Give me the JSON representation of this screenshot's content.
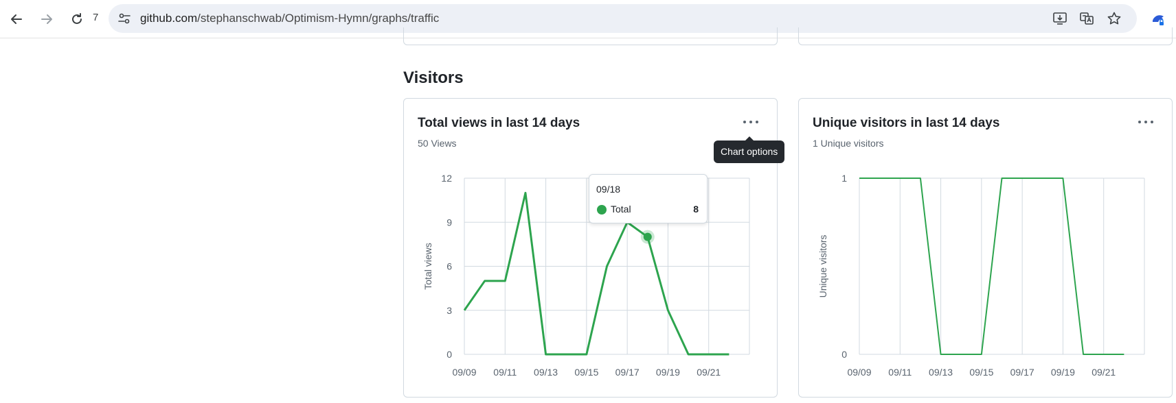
{
  "browser": {
    "tab_count": "7",
    "url_host": "github.com",
    "url_path": "/stephanschwab/Optimism-Hymn/graphs/traffic",
    "icons": [
      "back-icon",
      "forward-icon",
      "reload-icon",
      "site-info-icon",
      "install-app-icon",
      "translate-icon",
      "bookmark-star-icon",
      "profile-icon"
    ]
  },
  "section": {
    "title": "Visitors"
  },
  "views_card": {
    "title": "Total views in last 14 days",
    "subtitle": "50 Views",
    "ylabel": "Total views",
    "options_tooltip": "Chart options",
    "hover": {
      "date": "09/18",
      "series": "Total",
      "value": "8"
    }
  },
  "visitors_card": {
    "title": "Unique visitors in last 14 days",
    "subtitle": "1 Unique visitors",
    "ylabel": "Unique visitors"
  },
  "colors": {
    "line": "#2da44e",
    "grid": "#d1d9e0"
  },
  "chart_data": [
    {
      "type": "line",
      "title": "Total views in last 14 days",
      "ylabel": "Total views",
      "x": [
        "09/09",
        "09/10",
        "09/11",
        "09/12",
        "09/13",
        "09/14",
        "09/15",
        "09/16",
        "09/17",
        "09/18",
        "09/19",
        "09/20",
        "09/21",
        "09/22"
      ],
      "xticks": [
        "09/09",
        "09/11",
        "09/13",
        "09/15",
        "09/17",
        "09/19",
        "09/21"
      ],
      "yticks": [
        "0",
        "3",
        "6",
        "9",
        "12"
      ],
      "ylim": [
        0,
        12
      ],
      "series": [
        {
          "name": "Total",
          "values": [
            3,
            5,
            5,
            11,
            0,
            0,
            0,
            6,
            9,
            8,
            3,
            0,
            0,
            0
          ]
        }
      ],
      "highlight_index": 9,
      "grid": true
    },
    {
      "type": "line",
      "title": "Unique visitors in last 14 days",
      "ylabel": "Unique visitors",
      "x": [
        "09/09",
        "09/10",
        "09/11",
        "09/12",
        "09/13",
        "09/14",
        "09/15",
        "09/16",
        "09/17",
        "09/18",
        "09/19",
        "09/20",
        "09/21",
        "09/22"
      ],
      "xticks": [
        "09/09",
        "09/11",
        "09/13",
        "09/15",
        "09/17",
        "09/19",
        "09/21"
      ],
      "yticks": [
        "0",
        "1"
      ],
      "ylim": [
        0,
        1
      ],
      "series": [
        {
          "values": [
            1,
            1,
            1,
            1,
            0,
            0,
            0,
            1,
            1,
            1,
            1,
            0,
            0,
            0
          ]
        }
      ],
      "grid": true
    }
  ]
}
